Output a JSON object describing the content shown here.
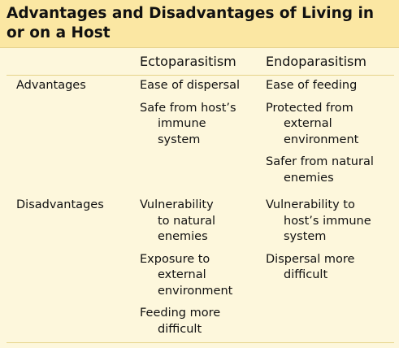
{
  "title": [
    "Advantages and Disadvantages of Living in",
    "or on a Host"
  ],
  "columns": [
    "Ectoparasitism",
    "Endoparasitism"
  ],
  "rows": [
    {
      "label": "Advantages",
      "cells": [
        [
          [
            "Ease of dispersal"
          ],
          [
            "Safe from host’s",
            "immune",
            "system"
          ]
        ],
        [
          [
            "Ease of feeding"
          ],
          [
            "Protected from",
            "external",
            "environment"
          ],
          [
            "Safer from natural",
            "enemies"
          ]
        ]
      ]
    },
    {
      "label": "Disadvantages",
      "cells": [
        [
          [
            "Vulnerability",
            "to natural",
            "enemies"
          ],
          [
            "Exposure to",
            "external",
            "environment"
          ],
          [
            "Feeding more",
            "difficult"
          ]
        ],
        [
          [
            "Vulnerability to",
            "host’s immune",
            "system"
          ],
          [
            "Dispersal more",
            "difficult"
          ]
        ]
      ]
    }
  ]
}
